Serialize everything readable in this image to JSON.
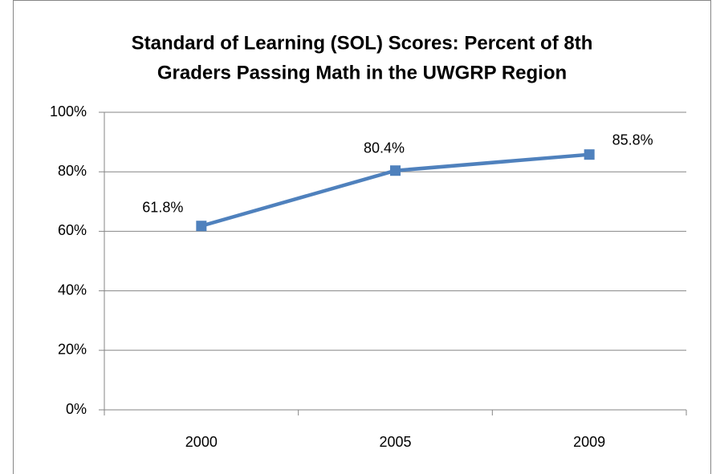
{
  "chart_data": {
    "type": "line",
    "title": [
      "Standard of Learning (SOL) Scores: Percent of 8th",
      "Graders Passing Math in the UWGRP Region"
    ],
    "categories": [
      "2000",
      "2005",
      "2009"
    ],
    "values": [
      61.8,
      80.4,
      85.8
    ],
    "value_labels": [
      "61.8%",
      "80.4%",
      "85.8%"
    ],
    "color": "#4f81bd",
    "ylim": [
      0,
      100
    ],
    "yticks": [
      {
        "value": 0,
        "label": "0%"
      },
      {
        "value": 20,
        "label": "20%"
      },
      {
        "value": 40,
        "label": "40%"
      },
      {
        "value": 60,
        "label": "60%"
      },
      {
        "value": 80,
        "label": "80%"
      },
      {
        "value": 100,
        "label": "100%"
      }
    ],
    "grid": true
  }
}
